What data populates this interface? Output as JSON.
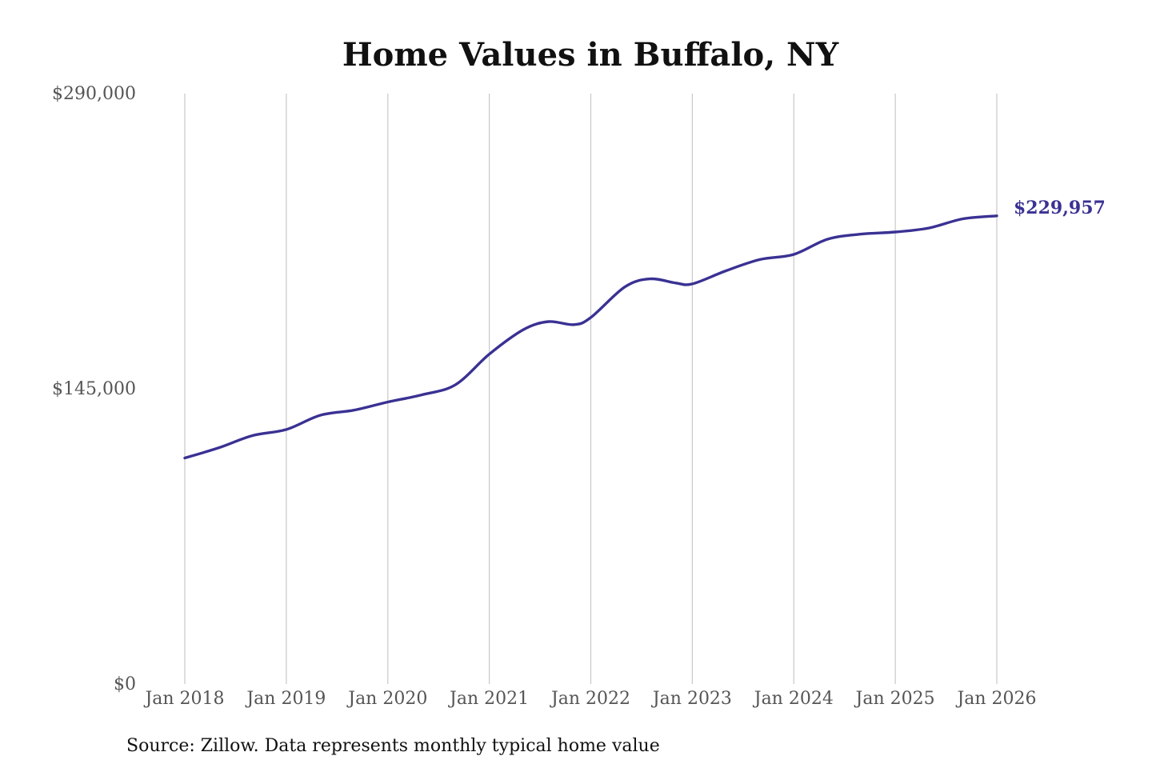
{
  "chart_data": {
    "type": "line",
    "title": "Home Values in Buffalo, NY",
    "xlabel": "",
    "ylabel": "",
    "ylim": [
      0,
      290000
    ],
    "y_ticks": [
      {
        "value": 0,
        "label": "$0"
      },
      {
        "value": 145000,
        "label": "$145,000"
      },
      {
        "value": 290000,
        "label": "$290,000"
      }
    ],
    "x_ticks": [
      "Jan 2018",
      "Jan 2019",
      "Jan 2020",
      "Jan 2021",
      "Jan 2022",
      "Jan 2023",
      "Jan 2024",
      "Jan 2025",
      "Jan 2026"
    ],
    "vertical_grid": true,
    "horizontal_grid": false,
    "series": [
      {
        "color": "#3a3193",
        "points": [
          {
            "x": "2018-01",
            "y": 111000
          },
          {
            "x": "2018-05",
            "y": 116000
          },
          {
            "x": "2018-09",
            "y": 122000
          },
          {
            "x": "2019-01",
            "y": 125000
          },
          {
            "x": "2019-05",
            "y": 132000
          },
          {
            "x": "2019-09",
            "y": 134500
          },
          {
            "x": "2020-01",
            "y": 138500
          },
          {
            "x": "2020-05",
            "y": 142000
          },
          {
            "x": "2020-09",
            "y": 147000
          },
          {
            "x": "2021-01",
            "y": 162000
          },
          {
            "x": "2021-05",
            "y": 174000
          },
          {
            "x": "2021-08",
            "y": 178000
          },
          {
            "x": "2021-11",
            "y": 176500
          },
          {
            "x": "2022-01",
            "y": 180000
          },
          {
            "x": "2022-05",
            "y": 195000
          },
          {
            "x": "2022-08",
            "y": 199000
          },
          {
            "x": "2022-11",
            "y": 197000
          },
          {
            "x": "2023-01",
            "y": 196500
          },
          {
            "x": "2023-05",
            "y": 203000
          },
          {
            "x": "2023-09",
            "y": 208500
          },
          {
            "x": "2024-01",
            "y": 211000
          },
          {
            "x": "2024-05",
            "y": 218500
          },
          {
            "x": "2024-09",
            "y": 221000
          },
          {
            "x": "2025-01",
            "y": 222000
          },
          {
            "x": "2025-05",
            "y": 224000
          },
          {
            "x": "2025-09",
            "y": 228500
          },
          {
            "x": "2026-01",
            "y": 229957
          }
        ]
      }
    ],
    "end_label": {
      "text": "$229,957",
      "color": "#3a3193"
    }
  },
  "source_note": "Source: Zillow. Data represents monthly typical home value"
}
